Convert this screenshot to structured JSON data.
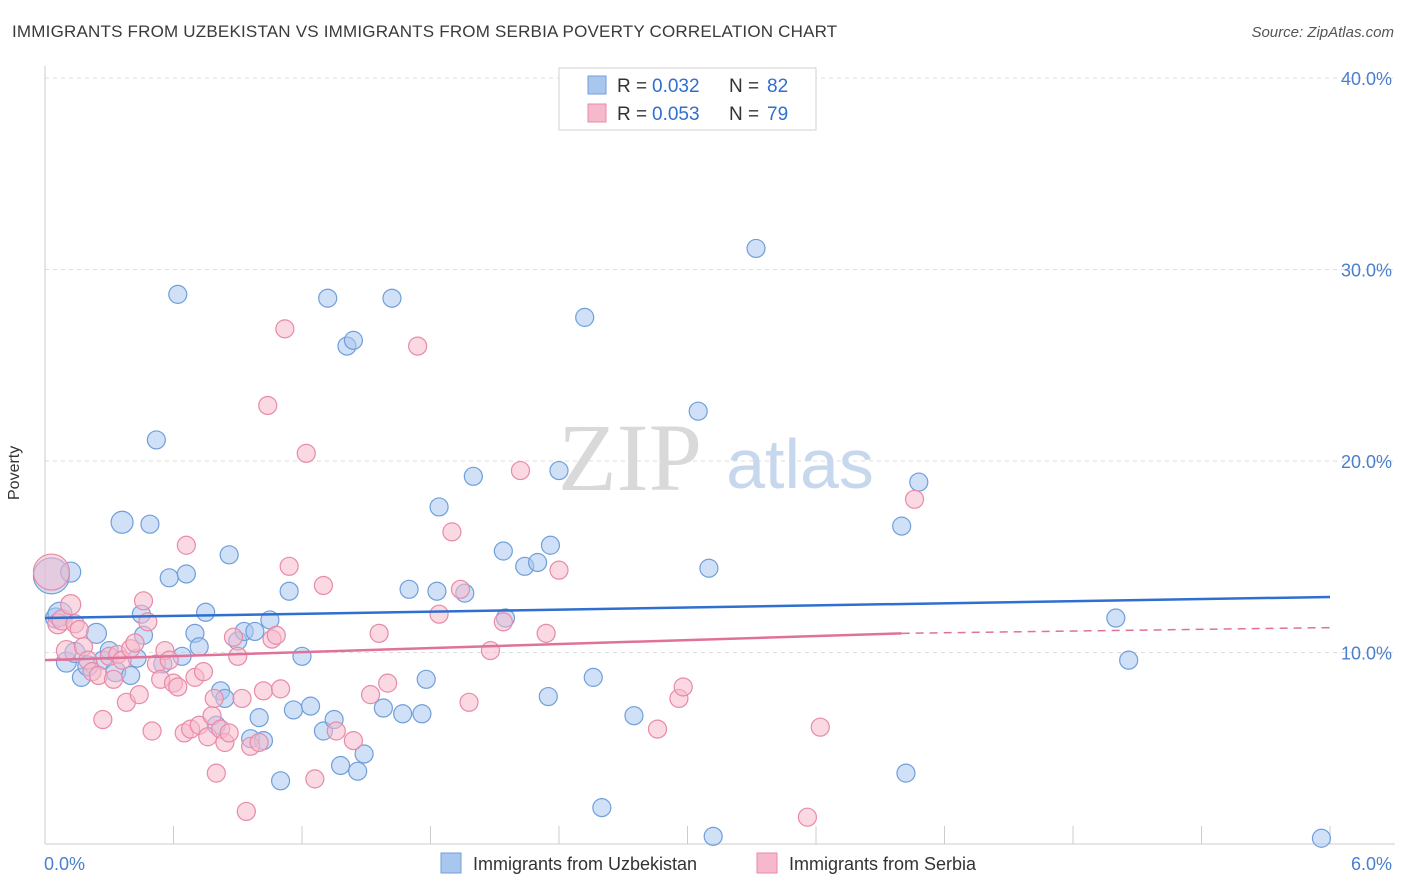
{
  "title": "IMMIGRANTS FROM UZBEKISTAN VS IMMIGRANTS FROM SERBIA POVERTY CORRELATION CHART",
  "source": "Source: ZipAtlas.com",
  "watermark": {
    "zip": "ZIP",
    "atlas": "atlas"
  },
  "colors": {
    "uzbekistan_fill": "#a9c7ee",
    "uzbekistan_stroke": "#6f9fdb",
    "uzbekistan_line": "#2f6fcf",
    "serbia_fill": "#f6b9cc",
    "serbia_stroke": "#e88aa8",
    "serbia_line": "#e0729a",
    "axis_text": "#4a7fd0",
    "grid": "#dddddd"
  },
  "legend": {
    "rows": [
      {
        "r_label": "R = ",
        "r_value": "0.032",
        "n_label": "N = ",
        "n_value": "82"
      },
      {
        "r_label": "R = ",
        "r_value": "0.053",
        "n_label": "N = ",
        "n_value": "79"
      }
    ]
  },
  "chart_data": {
    "type": "scatter",
    "title": "IMMIGRANTS FROM UZBEKISTAN VS IMMIGRANTS FROM SERBIA POVERTY CORRELATION CHART",
    "xlabel": "",
    "ylabel": "Poverty",
    "xlim": [
      0,
      6.0
    ],
    "ylim": [
      0,
      40.0
    ],
    "x_tick_labels": [
      "0.0%",
      "6.0%"
    ],
    "y_tick_labels": [
      "10.0%",
      "20.0%",
      "30.0%",
      "40.0%"
    ],
    "y_ticks": [
      10,
      20,
      30,
      40
    ],
    "series": [
      {
        "name": "Immigrants from Uzbekistan",
        "r": 0.032,
        "n": 82,
        "trend": {
          "x": [
            0.0,
            6.0
          ],
          "y": [
            11.8,
            12.9
          ]
        },
        "points": [
          [
            0.03,
            14.0
          ],
          [
            0.05,
            11.8
          ],
          [
            0.07,
            12.0
          ],
          [
            0.1,
            9.5
          ],
          [
            0.12,
            14.2
          ],
          [
            0.14,
            10.0
          ],
          [
            0.17,
            8.7
          ],
          [
            0.2,
            9.3
          ],
          [
            0.24,
            11.0
          ],
          [
            0.27,
            9.6
          ],
          [
            0.3,
            10.1
          ],
          [
            0.33,
            9.0
          ],
          [
            0.36,
            16.8
          ],
          [
            0.4,
            8.8
          ],
          [
            0.43,
            9.7
          ],
          [
            0.46,
            10.9
          ],
          [
            0.49,
            16.7
          ],
          [
            0.52,
            21.1
          ],
          [
            0.55,
            9.4
          ],
          [
            0.58,
            13.9
          ],
          [
            0.62,
            28.7
          ],
          [
            0.64,
            9.8
          ],
          [
            0.66,
            14.1
          ],
          [
            0.7,
            11.0
          ],
          [
            0.72,
            10.3
          ],
          [
            0.75,
            12.1
          ],
          [
            0.8,
            6.2
          ],
          [
            0.82,
            8.0
          ],
          [
            0.84,
            7.6
          ],
          [
            0.86,
            15.1
          ],
          [
            0.9,
            10.6
          ],
          [
            0.93,
            11.1
          ],
          [
            0.96,
            5.5
          ],
          [
            0.98,
            11.1
          ],
          [
            1.0,
            6.6
          ],
          [
            1.02,
            5.4
          ],
          [
            1.05,
            11.7
          ],
          [
            1.1,
            3.3
          ],
          [
            1.14,
            13.2
          ],
          [
            1.16,
            7.0
          ],
          [
            1.2,
            9.8
          ],
          [
            1.24,
            7.2
          ],
          [
            1.3,
            5.9
          ],
          [
            1.32,
            28.5
          ],
          [
            1.35,
            6.5
          ],
          [
            1.38,
            4.1
          ],
          [
            1.41,
            26.0
          ],
          [
            1.44,
            26.3
          ],
          [
            1.46,
            3.8
          ],
          [
            1.49,
            4.7
          ],
          [
            1.58,
            7.1
          ],
          [
            1.62,
            28.5
          ],
          [
            1.67,
            6.8
          ],
          [
            1.7,
            13.3
          ],
          [
            1.76,
            6.8
          ],
          [
            1.78,
            8.6
          ],
          [
            1.84,
            17.6
          ],
          [
            1.83,
            13.2
          ],
          [
            1.96,
            13.1
          ],
          [
            2.0,
            19.2
          ],
          [
            2.14,
            15.3
          ],
          [
            2.15,
            11.8
          ],
          [
            2.24,
            14.5
          ],
          [
            2.3,
            14.7
          ],
          [
            2.35,
            7.7
          ],
          [
            2.36,
            15.6
          ],
          [
            2.4,
            19.5
          ],
          [
            2.56,
            8.7
          ],
          [
            2.52,
            27.5
          ],
          [
            2.6,
            1.9
          ],
          [
            2.75,
            6.7
          ],
          [
            3.05,
            22.6
          ],
          [
            3.1,
            14.4
          ],
          [
            3.12,
            0.4
          ],
          [
            3.32,
            31.1
          ],
          [
            4.0,
            16.6
          ],
          [
            4.02,
            3.7
          ],
          [
            4.08,
            18.9
          ],
          [
            5.0,
            11.8
          ],
          [
            5.06,
            9.6
          ],
          [
            5.96,
            0.3
          ],
          [
            0.45,
            12.0
          ]
        ],
        "sizes": [
          18,
          10,
          12,
          10,
          10,
          10,
          9,
          10,
          10,
          9,
          9,
          10,
          11,
          9,
          9,
          9,
          9,
          9,
          9,
          9,
          9,
          9,
          9,
          9,
          9,
          9,
          9,
          9,
          9,
          9,
          9,
          9,
          9,
          9,
          9,
          9,
          9,
          9,
          9,
          9,
          9,
          9,
          9,
          9,
          9,
          9,
          9,
          9,
          9,
          9,
          9,
          9,
          9,
          9,
          9,
          9,
          9,
          9,
          9,
          9,
          9,
          9,
          9,
          9,
          9,
          9,
          9,
          9,
          9,
          9,
          9,
          9,
          9,
          9,
          9,
          9,
          9,
          9,
          9,
          9,
          9,
          9
        ]
      },
      {
        "name": "Immigrants from Serbia",
        "r": 0.053,
        "n": 79,
        "trend": {
          "x": [
            0.0,
            4.0
          ],
          "y": [
            9.6,
            11.0
          ]
        },
        "trend_dashed": {
          "x": [
            4.0,
            6.0
          ],
          "y": [
            11.0,
            11.3
          ]
        },
        "points": [
          [
            0.03,
            14.2
          ],
          [
            0.06,
            11.5
          ],
          [
            0.08,
            11.7
          ],
          [
            0.1,
            10.1
          ],
          [
            0.12,
            12.5
          ],
          [
            0.14,
            11.5
          ],
          [
            0.16,
            11.2
          ],
          [
            0.18,
            10.3
          ],
          [
            0.2,
            9.6
          ],
          [
            0.22,
            9.0
          ],
          [
            0.25,
            8.8
          ],
          [
            0.27,
            6.5
          ],
          [
            0.3,
            9.8
          ],
          [
            0.32,
            8.6
          ],
          [
            0.34,
            9.9
          ],
          [
            0.36,
            9.6
          ],
          [
            0.38,
            7.4
          ],
          [
            0.4,
            10.2
          ],
          [
            0.42,
            10.5
          ],
          [
            0.44,
            7.8
          ],
          [
            0.46,
            12.7
          ],
          [
            0.48,
            11.6
          ],
          [
            0.5,
            5.9
          ],
          [
            0.52,
            9.4
          ],
          [
            0.54,
            8.6
          ],
          [
            0.56,
            10.1
          ],
          [
            0.58,
            9.6
          ],
          [
            0.6,
            8.4
          ],
          [
            0.62,
            8.2
          ],
          [
            0.65,
            5.8
          ],
          [
            0.66,
            15.6
          ],
          [
            0.68,
            6.0
          ],
          [
            0.7,
            8.7
          ],
          [
            0.72,
            6.2
          ],
          [
            0.74,
            9.0
          ],
          [
            0.76,
            5.6
          ],
          [
            0.78,
            6.7
          ],
          [
            0.79,
            7.6
          ],
          [
            0.8,
            3.7
          ],
          [
            0.82,
            6.0
          ],
          [
            0.84,
            5.3
          ],
          [
            0.86,
            5.8
          ],
          [
            0.88,
            10.8
          ],
          [
            0.9,
            9.8
          ],
          [
            0.92,
            7.6
          ],
          [
            0.94,
            1.7
          ],
          [
            0.96,
            5.1
          ],
          [
            1.0,
            5.3
          ],
          [
            1.02,
            8.0
          ],
          [
            1.04,
            22.9
          ],
          [
            1.06,
            10.7
          ],
          [
            1.08,
            10.9
          ],
          [
            1.1,
            8.1
          ],
          [
            1.12,
            26.9
          ],
          [
            1.14,
            14.5
          ],
          [
            1.22,
            20.4
          ],
          [
            1.26,
            3.4
          ],
          [
            1.3,
            13.5
          ],
          [
            1.36,
            5.9
          ],
          [
            1.44,
            5.4
          ],
          [
            1.52,
            7.8
          ],
          [
            1.56,
            11.0
          ],
          [
            1.6,
            8.4
          ],
          [
            1.74,
            26.0
          ],
          [
            1.84,
            12.0
          ],
          [
            1.9,
            16.3
          ],
          [
            1.94,
            13.3
          ],
          [
            1.98,
            7.4
          ],
          [
            2.08,
            10.1
          ],
          [
            2.14,
            11.6
          ],
          [
            2.22,
            19.5
          ],
          [
            2.34,
            11.0
          ],
          [
            2.4,
            14.3
          ],
          [
            2.86,
            6.0
          ],
          [
            2.96,
            7.6
          ],
          [
            2.98,
            8.2
          ],
          [
            3.56,
            1.4
          ],
          [
            3.62,
            6.1
          ],
          [
            4.06,
            18.0
          ]
        ],
        "sizes": [
          18,
          10,
          10,
          10,
          10,
          9,
          9,
          9,
          9,
          9,
          9,
          9,
          9,
          9,
          9,
          9,
          9,
          9,
          9,
          9,
          9,
          9,
          9,
          9,
          9,
          9,
          9,
          9,
          9,
          9,
          9,
          9,
          9,
          9,
          9,
          9,
          9,
          9,
          9,
          9,
          9,
          9,
          9,
          9,
          9,
          9,
          9,
          9,
          9,
          9,
          9,
          9,
          9,
          9,
          9,
          9,
          9,
          9,
          9,
          9,
          9,
          9,
          9,
          9,
          9,
          9,
          9,
          9,
          9,
          9,
          9,
          9,
          9,
          9,
          9,
          9,
          9,
          9,
          9
        ]
      }
    ]
  }
}
